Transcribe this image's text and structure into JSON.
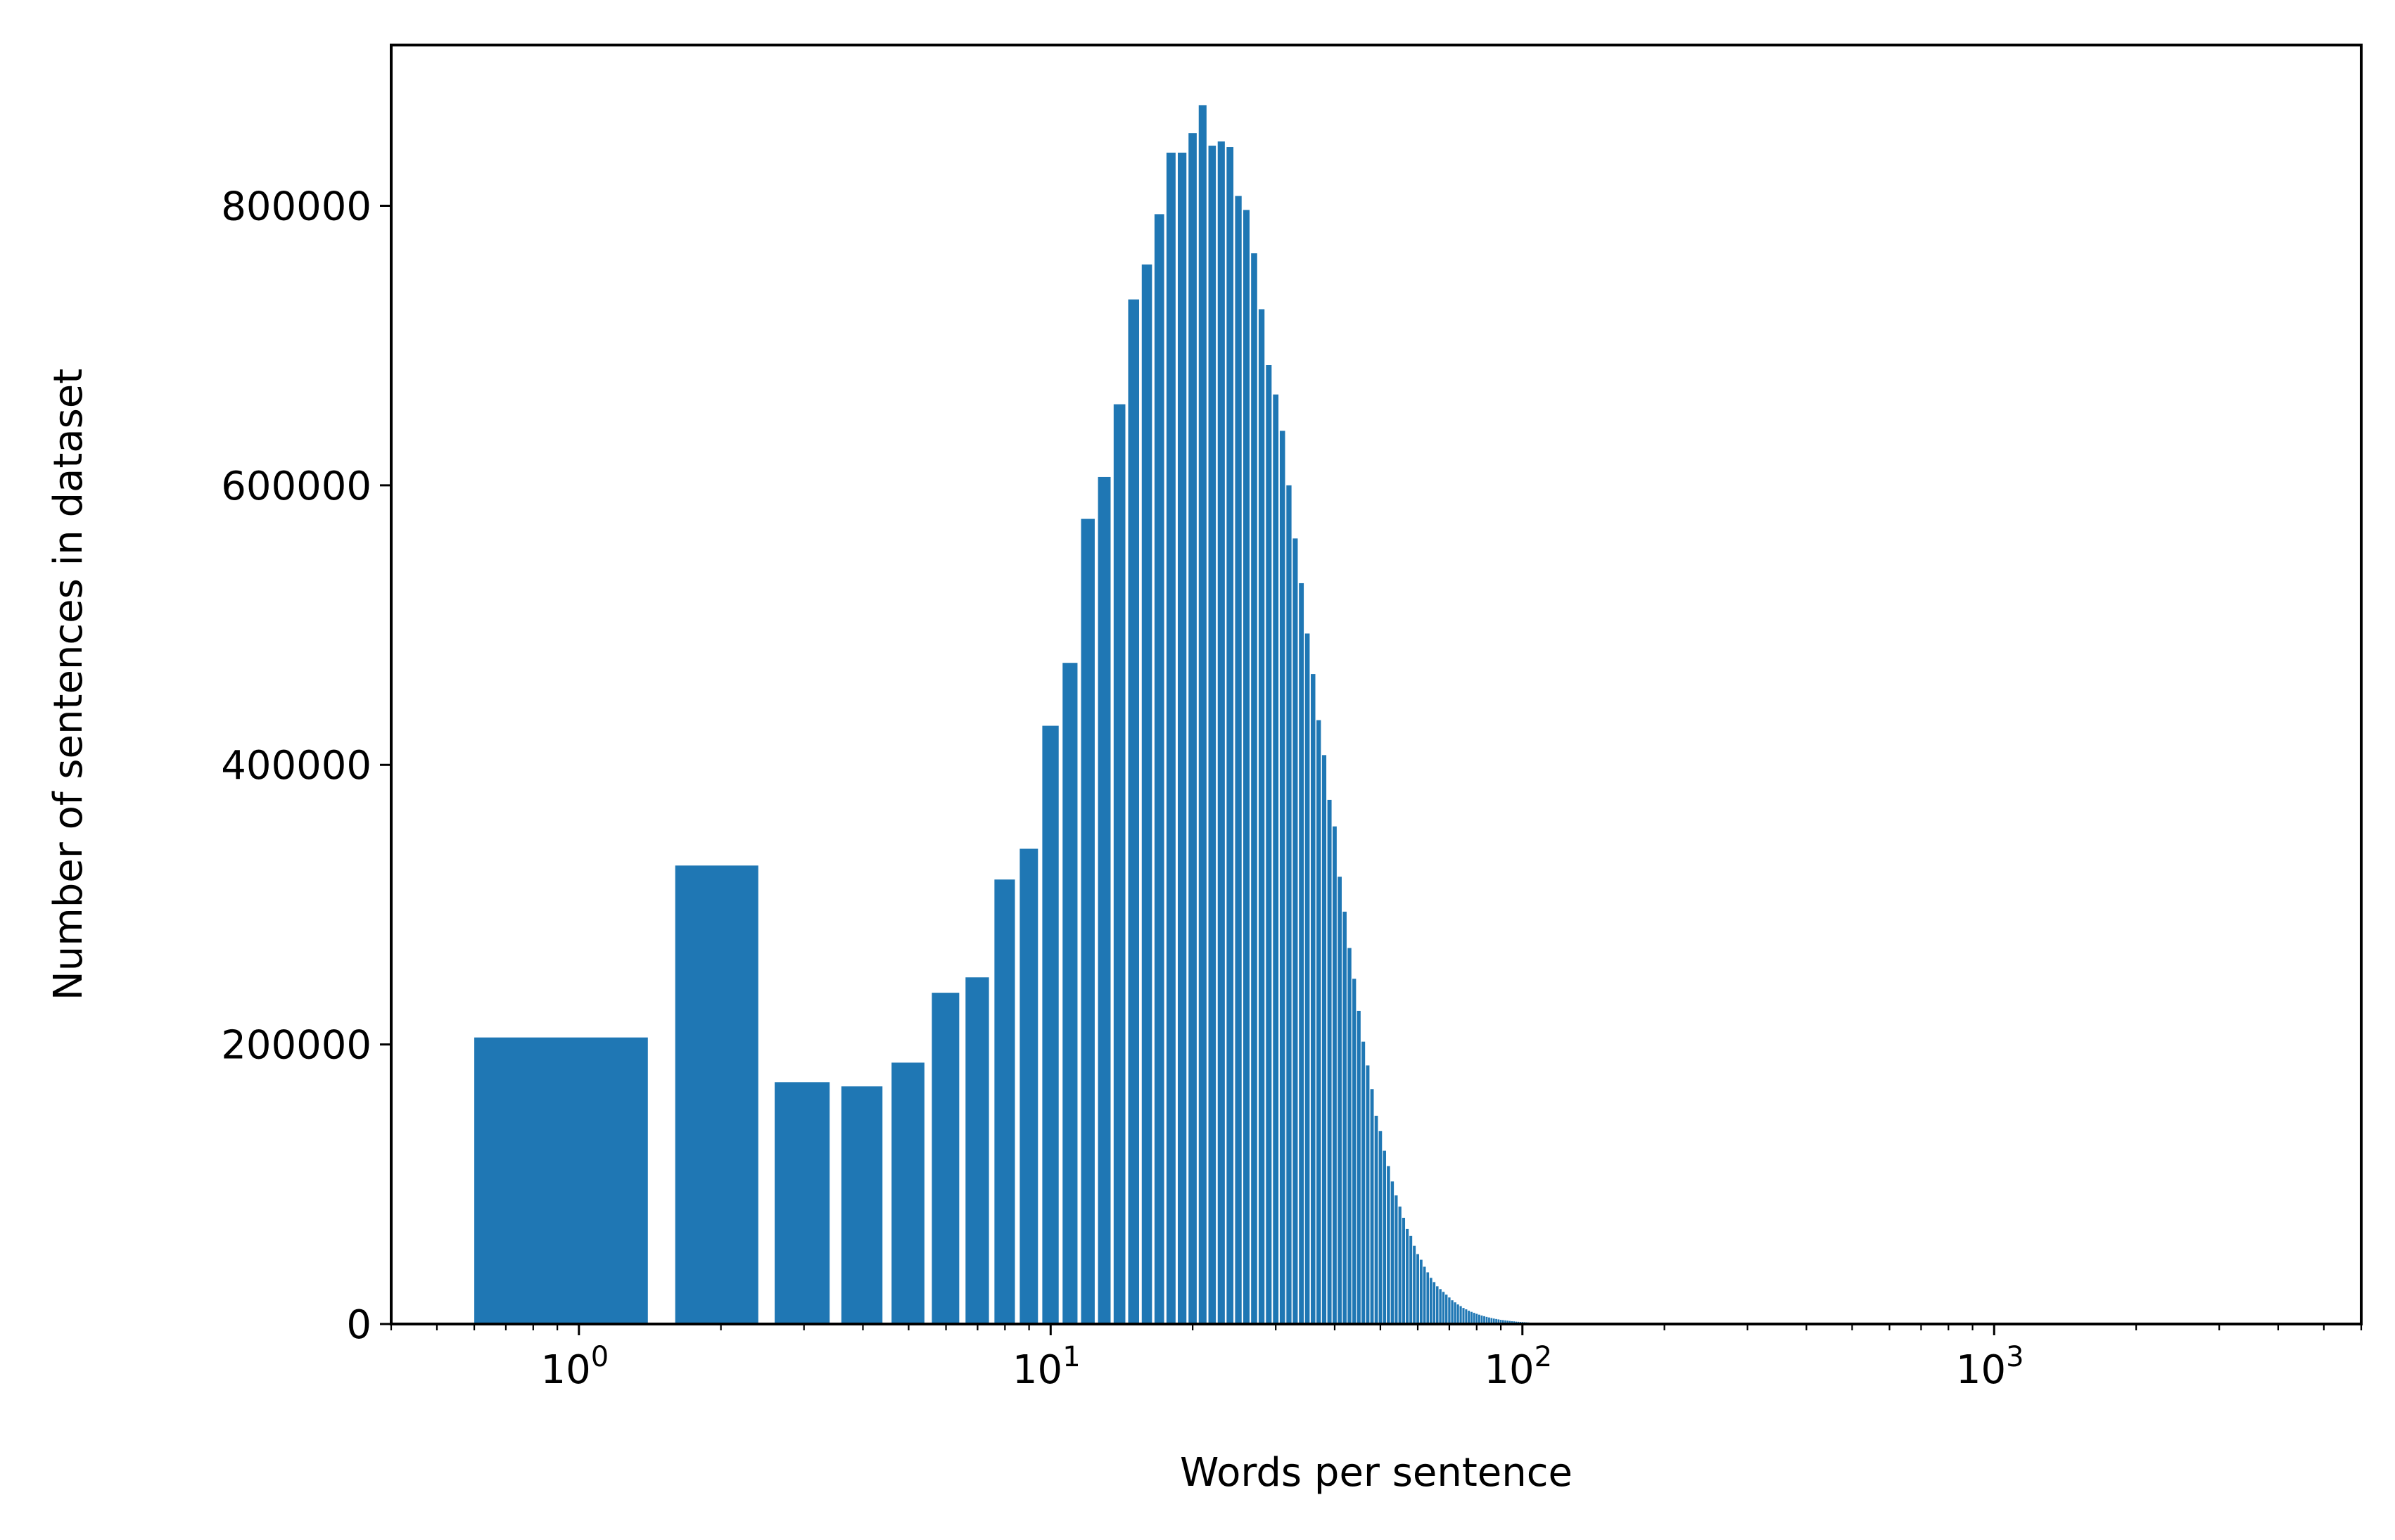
{
  "chart_data": {
    "type": "bar",
    "title": "",
    "xlabel": "Words per sentence",
    "ylabel": "Number of sentences in dataset",
    "xscale": "log",
    "xlim": [
      0.4,
      6000
    ],
    "ylim": [
      0,
      915000
    ],
    "grid": false,
    "legend": "none",
    "bar_color": "#1f77b4",
    "bar_width_words": 0.8,
    "y_ticks": [
      {
        "value": 0,
        "label": "0"
      },
      {
        "value": 200000,
        "label": "200000"
      },
      {
        "value": 400000,
        "label": "400000"
      },
      {
        "value": 600000,
        "label": "600000"
      },
      {
        "value": 800000,
        "label": "800000"
      }
    ],
    "x_ticks": [
      {
        "value": 1,
        "base": "10",
        "exp": "0"
      },
      {
        "value": 10,
        "base": "10",
        "exp": "1"
      },
      {
        "value": 100,
        "base": "10",
        "exp": "2"
      },
      {
        "value": 1000,
        "base": "10",
        "exp": "3"
      }
    ],
    "x": [
      1,
      2,
      3,
      4,
      5,
      6,
      7,
      8,
      9,
      10,
      11,
      12,
      13,
      14,
      15,
      16,
      17,
      18,
      19,
      20,
      21,
      22,
      23,
      24,
      25,
      26,
      27,
      28,
      29,
      30,
      31,
      32,
      33,
      34,
      35,
      36,
      37,
      38,
      39,
      40,
      41,
      42,
      43,
      44,
      45,
      46,
      47,
      48,
      49,
      50,
      51,
      52,
      53,
      54,
      55,
      56,
      57,
      58,
      59,
      60,
      61,
      62,
      63,
      64,
      65,
      66,
      67,
      68,
      69,
      70,
      71,
      72,
      73,
      74,
      75,
      76,
      77,
      78,
      79,
      80,
      81,
      82,
      83,
      84,
      85,
      86,
      87,
      88,
      89,
      90,
      91,
      92,
      93,
      94,
      95,
      96,
      97,
      98,
      99,
      100,
      101,
      102,
      103,
      104,
      105,
      106,
      107,
      108,
      109,
      110,
      111,
      112,
      113,
      114,
      115,
      116,
      117,
      118,
      119,
      120,
      121,
      122,
      123,
      124,
      125,
      126,
      127,
      128,
      129,
      130,
      131,
      132,
      133,
      134,
      135,
      136,
      137,
      138,
      139,
      140
    ],
    "values": [
      205000,
      328000,
      173000,
      170000,
      187000,
      237000,
      248000,
      318000,
      340000,
      428000,
      473000,
      576000,
      606000,
      658000,
      733000,
      758000,
      794000,
      838000,
      838000,
      852000,
      872000,
      843000,
      846000,
      842000,
      807000,
      797000,
      766000,
      726000,
      686000,
      665000,
      639000,
      600000,
      562000,
      530000,
      494000,
      465000,
      432000,
      407000,
      375000,
      356000,
      320000,
      295000,
      269000,
      247000,
      224000,
      202000,
      185000,
      168000,
      149000,
      138000,
      124000,
      113000,
      102000,
      92000,
      84000,
      76000,
      68000,
      63000,
      56000,
      50000,
      46000,
      41000,
      37000,
      33000,
      30000,
      27000,
      25000,
      23000,
      21000,
      19000,
      17000,
      15500,
      14000,
      12800,
      11500,
      10500,
      9500,
      8700,
      8000,
      7300,
      6700,
      6100,
      5600,
      5100,
      4700,
      4300,
      3900,
      3600,
      3300,
      3000,
      2800,
      2600,
      2400,
      2200,
      2000,
      1900,
      1700,
      1600,
      1500,
      1400,
      1300,
      1200,
      1100,
      1000,
      950,
      900,
      850,
      800,
      750,
      700,
      650,
      600,
      560,
      520,
      490,
      460,
      430,
      400,
      370,
      350,
      330,
      310,
      290,
      270,
      250,
      230,
      210,
      200,
      190,
      180,
      170,
      160,
      150,
      140,
      130,
      120,
      110,
      100,
      90,
      80
    ]
  }
}
